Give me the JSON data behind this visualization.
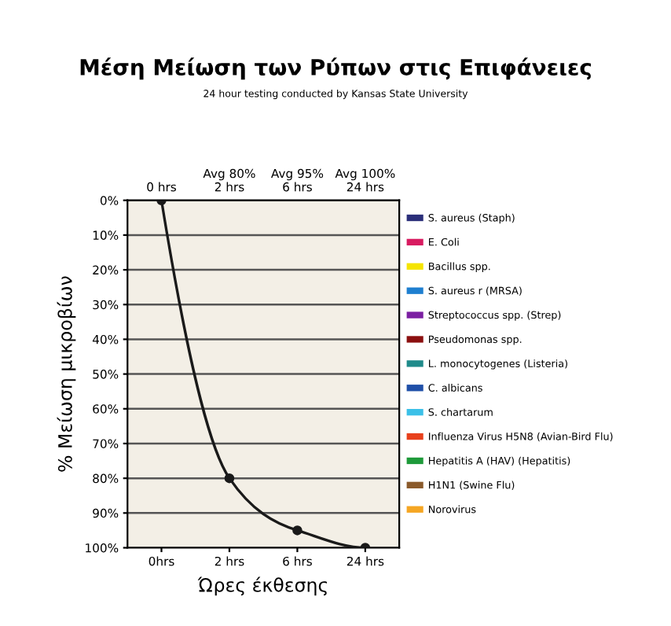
{
  "chart_data": {
    "type": "line",
    "title": "Μέση Μείωση των Ρύπων στις Επιφάνειες",
    "subtitle": "24 hour testing conducted by Kansas State University",
    "xlabel": "Ώρες έκθεσης",
    "ylabel": "% Μείωση μικροβίων",
    "categories": [
      "0hrs",
      "2 hrs",
      "6 hrs",
      "24 hrs"
    ],
    "series": [
      {
        "color": "#1a1a1a",
        "values": [
          0,
          80,
          95,
          100
        ]
      },
      {
        "name": "S. aureus (Staph)",
        "color": "#2b2f7a",
        "values": [
          null,
          null,
          null,
          null
        ]
      },
      {
        "name": "E. Coli",
        "color": "#d81b60",
        "values": [
          null,
          null,
          null,
          null
        ]
      },
      {
        "name": "Bacillus spp.",
        "color": "#f5e400",
        "values": [
          null,
          null,
          null,
          null
        ]
      },
      {
        "name": "S. aureus r (MRSA)",
        "color": "#1e7fd0",
        "values": [
          null,
          null,
          null,
          null
        ]
      },
      {
        "name": "Streptococcus spp. (Strep)",
        "color": "#7b1fa2",
        "values": [
          null,
          null,
          null,
          null
        ]
      },
      {
        "name": "Pseudomonas spp.",
        "color": "#8b0f0f",
        "values": [
          null,
          null,
          null,
          null
        ]
      },
      {
        "name": "L. monocytogenes (Listeria)",
        "color": "#1f8a8a",
        "values": [
          null,
          null,
          null,
          null
        ]
      },
      {
        "name": "C. albicans",
        "color": "#1f4fa8",
        "values": [
          null,
          null,
          null,
          null
        ]
      },
      {
        "name": "S. chartarum",
        "color": "#3cc0e8",
        "values": [
          null,
          null,
          null,
          null
        ]
      },
      {
        "name": "Influenza Virus H5N8 (Avian-Bird Flu)",
        "color": "#e8401c",
        "values": [
          null,
          null,
          null,
          null
        ]
      },
      {
        "name": "Hepatitis A (HAV) (Hepatitis)",
        "color": "#1e9a3a",
        "values": [
          null,
          null,
          null,
          null
        ]
      },
      {
        "name": "H1N1 (Swine Flu)",
        "color": "#8a5a2b",
        "values": [
          null,
          null,
          null,
          null
        ]
      },
      {
        "name": "Norovirus",
        "color": "#f5a623",
        "values": [
          null,
          null,
          null,
          null
        ]
      }
    ],
    "ylim": [
      100,
      0
    ],
    "yticks": [
      {
        "value": 0,
        "label": "0%"
      },
      {
        "value": 10,
        "label": "10%"
      },
      {
        "value": 20,
        "label": "20%"
      },
      {
        "value": 30,
        "label": "30%"
      },
      {
        "value": 40,
        "label": "40%"
      },
      {
        "value": 50,
        "label": "50%"
      },
      {
        "value": 60,
        "label": "60%"
      },
      {
        "value": 70,
        "label": "70%"
      },
      {
        "value": 80,
        "label": "80%"
      },
      {
        "value": 90,
        "label": "90%"
      },
      {
        "value": 100,
        "label": "100%"
      }
    ],
    "annotations": [
      "0 hrs",
      "Avg 80%\n2 hrs",
      "Avg 95%\n6 hrs",
      "Avg 100%\n24 hrs"
    ],
    "grid": "y",
    "legend": "right",
    "marker": "circle",
    "line_style": "solid"
  }
}
